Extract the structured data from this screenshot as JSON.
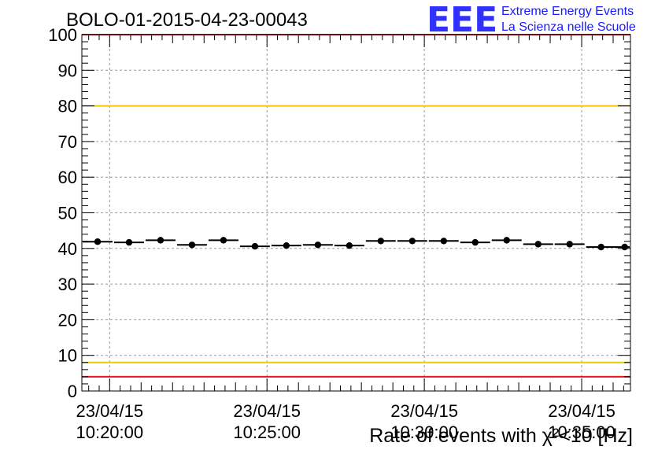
{
  "title": "BOLO-01-2015-04-23-00043",
  "logo": {
    "mark": "EEE",
    "line1": "Extreme Energy Events",
    "line2": "La Scienza nelle Scuole",
    "color": "#1a1aff"
  },
  "chart_data": {
    "type": "scatter",
    "title": "BOLO-01-2015-04-23-00043",
    "xlabel": "Rate of events with χ²<10 [Hz]",
    "ylabel": "",
    "ylim": [
      0,
      100
    ],
    "y_ticks": [
      0,
      10,
      20,
      30,
      40,
      50,
      60,
      70,
      80,
      90,
      100
    ],
    "x_tick_labels": [
      {
        "date": "23/04/15",
        "time": "10:20:00"
      },
      {
        "date": "23/04/15",
        "time": "10:25:00"
      },
      {
        "date": "23/04/15",
        "time": "10:30:00"
      },
      {
        "date": "23/04/15",
        "time": "10:35:00"
      }
    ],
    "xlim": [
      "10:19:07",
      "10:36:33"
    ],
    "grid": true,
    "bin_minutes": 1,
    "series": [
      {
        "x": [
          "10:19:37",
          "10:20:37",
          "10:21:37",
          "10:22:37",
          "10:23:37",
          "10:24:37",
          "10:25:37",
          "10:26:37",
          "10:27:37",
          "10:28:37",
          "10:29:37",
          "10:30:37",
          "10:31:37",
          "10:32:37",
          "10:33:37",
          "10:34:37",
          "10:35:37",
          "10:36:22"
        ],
        "values": [
          41.9,
          41.7,
          42.3,
          41.0,
          42.3,
          40.6,
          40.8,
          41.0,
          40.8,
          42.1,
          42.1,
          42.1,
          41.7,
          42.3,
          41.2,
          41.2,
          40.4,
          40.4
        ]
      }
    ],
    "reference_lines": [
      {
        "y": 100,
        "color": "#e8141e"
      },
      {
        "y": 80,
        "color": "#f0c800"
      },
      {
        "y": 8,
        "color": "#f0c800"
      },
      {
        "y": 4,
        "color": "#e8141e"
      }
    ]
  }
}
